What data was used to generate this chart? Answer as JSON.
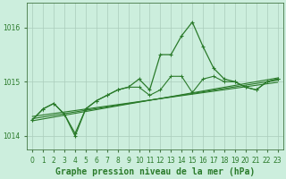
{
  "title": "Graphe pression niveau de la mer (hPa)",
  "x_values": [
    0,
    1,
    2,
    3,
    4,
    5,
    6,
    7,
    8,
    9,
    10,
    11,
    12,
    13,
    14,
    15,
    16,
    17,
    18,
    19,
    20,
    21,
    22,
    23
  ],
  "pressure_main": [
    1014.3,
    1014.5,
    1014.6,
    1014.4,
    1014.0,
    1014.5,
    1014.65,
    1014.75,
    1014.85,
    1014.9,
    1015.05,
    1014.85,
    1015.5,
    1015.5,
    1015.85,
    1016.1,
    1015.65,
    1015.25,
    1015.05,
    1015.0,
    1014.9,
    1014.85,
    1015.0,
    1015.05
  ],
  "pressure_line2": [
    1014.3,
    1014.5,
    1014.6,
    1014.4,
    1014.05,
    1014.5,
    1014.65,
    1014.75,
    1014.85,
    1014.9,
    1014.9,
    1014.75,
    1014.85,
    1015.1,
    1015.1,
    1014.8,
    1015.05,
    1015.1,
    1015.0,
    1015.0,
    1014.9,
    1014.85,
    1015.0,
    1015.05
  ],
  "trend_line1": [
    1014.28,
    1015.07
  ],
  "trend_line2": [
    1014.32,
    1015.03
  ],
  "trend_line3": [
    1014.36,
    1014.99
  ],
  "ylim_min": 1013.75,
  "ylim_max": 1016.45,
  "yticks": [
    1014,
    1015,
    1016
  ],
  "line_color": "#2a7a2a",
  "bg_color": "#cceedd",
  "grid_color": "#aaccbb",
  "title_fontsize": 7,
  "tick_fontsize": 5.5
}
